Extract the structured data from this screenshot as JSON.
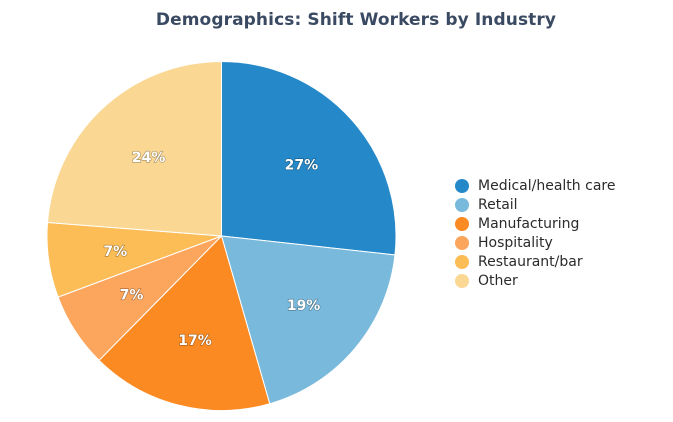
{
  "chart_data": {
    "type": "pie",
    "title": "Demographics: Shift Workers by Industry",
    "categories": [
      "Medical/health care",
      "Retail",
      "Manufacturing",
      "Hospitality",
      "Restaurant/bar",
      "Other"
    ],
    "values": [
      27,
      19,
      17,
      7,
      7,
      24
    ],
    "value_labels": [
      "27%",
      "19%",
      "17%",
      "7%",
      "7%",
      "24%"
    ],
    "colors": [
      "#2589c9",
      "#79b9dc",
      "#fb8a22",
      "#fba55d",
      "#fcbc56",
      "#fad894"
    ],
    "start_angle_deg": 0,
    "direction": "clockwise",
    "legend_position": "right"
  }
}
